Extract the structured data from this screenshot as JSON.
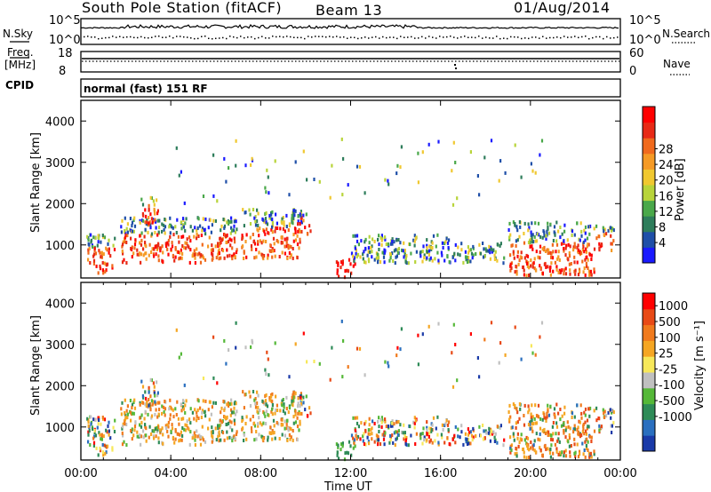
{
  "header": {
    "station": "South Pole Station (fitACF)",
    "beam": "Beam 13",
    "date": "01/Aug/2014"
  },
  "chart_data": [
    {
      "type": "line",
      "panel": "noise",
      "left_label": "N.Sky",
      "right_label": "N.Search",
      "left_ticks": [
        "10^5",
        "10^0"
      ],
      "right_ticks": [
        "10^5",
        "10^0"
      ]
    },
    {
      "type": "line",
      "panel": "frequency",
      "left_label_1": "Freq.",
      "left_label_2": "[MHz]",
      "right_label": "Nave",
      "left_ticks": [
        "18",
        "8"
      ],
      "right_ticks": [
        "60",
        "0"
      ]
    },
    {
      "type": "table",
      "panel": "cpid",
      "label": "CPID",
      "value": "normal (fast) 151 RF"
    },
    {
      "type": "heatmap",
      "panel": "power",
      "ylabel": "Slant Range [km]",
      "yticks": [
        1000,
        2000,
        3000,
        4000
      ],
      "ylim": [
        200,
        4500
      ],
      "colorbar": {
        "label": "Power [dB]",
        "levels": [
          "4",
          "8",
          "12",
          "16",
          "20",
          "24",
          "28"
        ],
        "colors": [
          "#1a1aff",
          "#1f4fa8",
          "#2e7d5b",
          "#4aa84a",
          "#b8d43a",
          "#f0c830",
          "#f59a25",
          "#f06a1d",
          "#e82a16",
          "#ff0000"
        ]
      }
    },
    {
      "type": "heatmap",
      "panel": "velocity",
      "ylabel": "Slant Range [km]",
      "yticks": [
        1000,
        2000,
        3000,
        4000
      ],
      "ylim": [
        200,
        4500
      ],
      "colorbar": {
        "label": "Velocity [m s⁻¹]",
        "levels": [
          "1000",
          "500",
          "100",
          "25",
          "-25",
          "-100",
          "-500",
          "-1000"
        ],
        "colors": [
          "#1a3aa8",
          "#2a6fbf",
          "#2e8b57",
          "#55b838",
          "#c0c0c0",
          "#f7e85a",
          "#f5a623",
          "#f07a1d",
          "#e84a16",
          "#ff0000"
        ]
      }
    }
  ],
  "time_axis": {
    "xlabel": "Time UT",
    "ticks": [
      "00:00",
      "04:00",
      "08:00",
      "12:00",
      "16:00",
      "20:00",
      "00:00"
    ],
    "xlim": [
      0,
      24
    ]
  }
}
